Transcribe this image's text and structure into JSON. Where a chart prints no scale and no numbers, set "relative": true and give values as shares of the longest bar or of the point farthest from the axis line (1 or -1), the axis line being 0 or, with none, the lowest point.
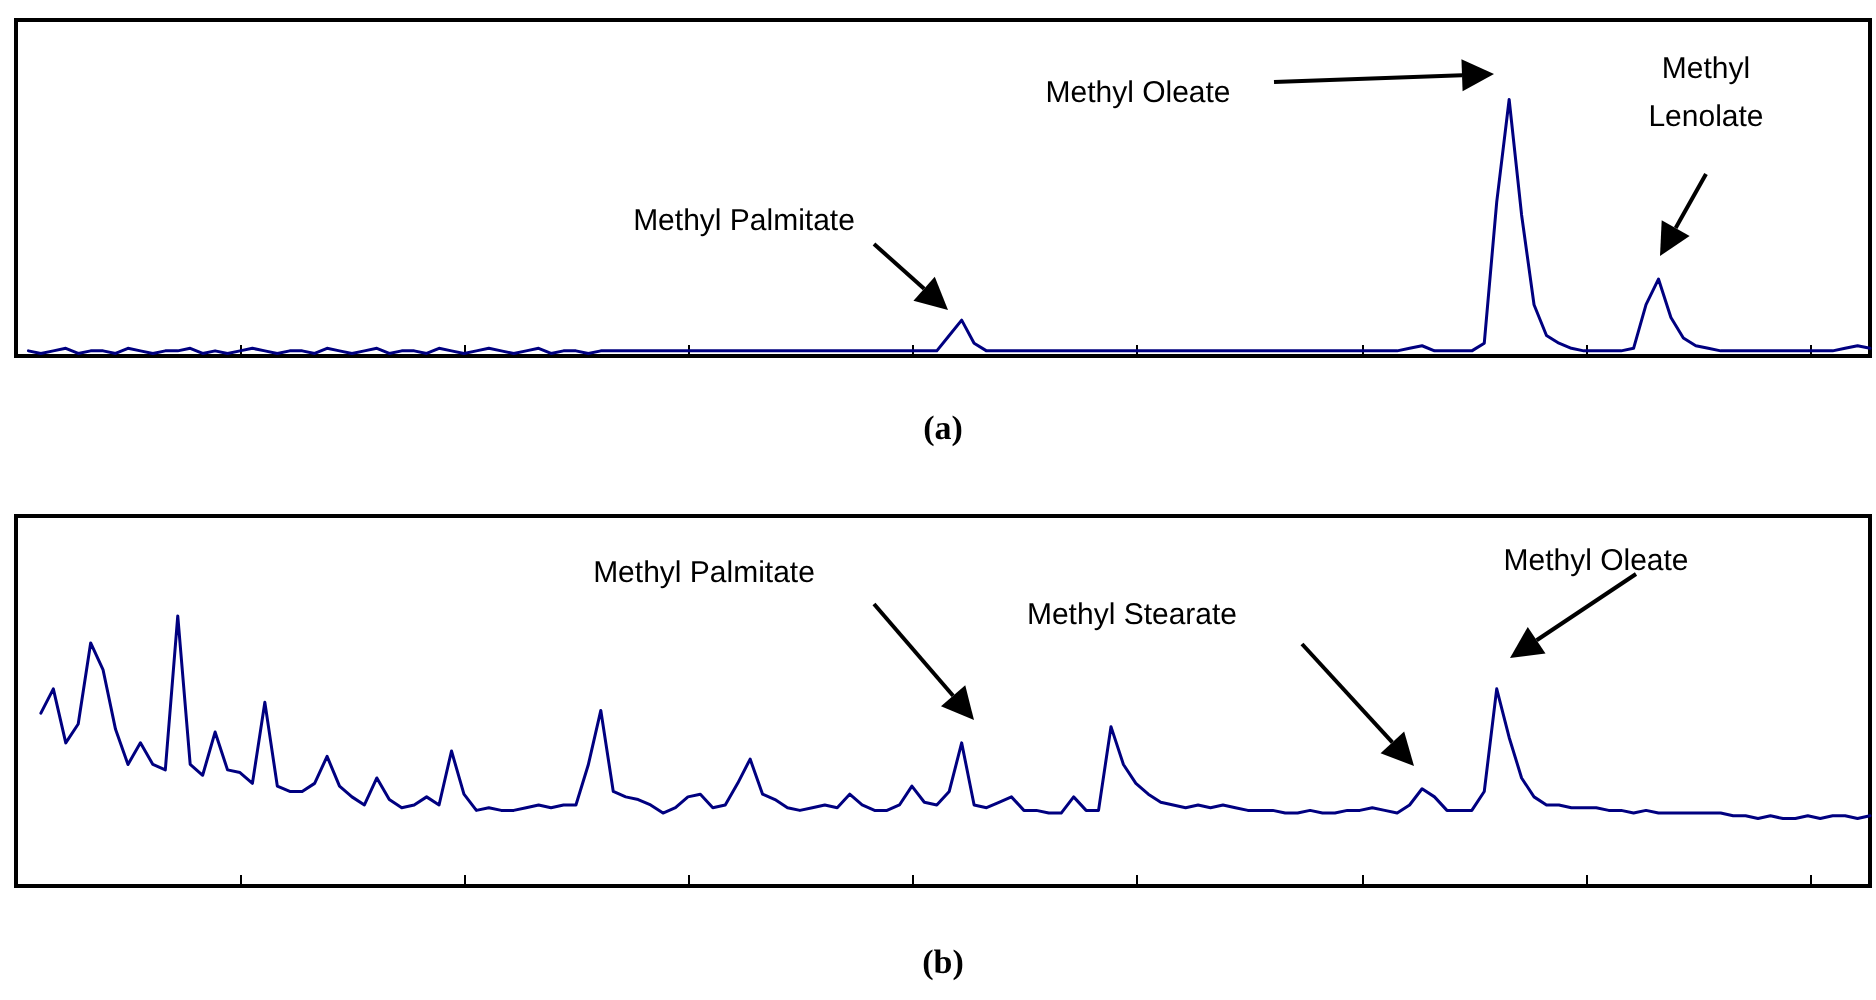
{
  "chart_data": [
    {
      "type": "line",
      "title": "(a)",
      "relative": true,
      "tick_labels": false,
      "grid": false,
      "color": "#000080",
      "categories": [
        null,
        null,
        null,
        null,
        null,
        null,
        null,
        null,
        null,
        null,
        null,
        null,
        null,
        null,
        null,
        null,
        null,
        null,
        null,
        null,
        null,
        null,
        null,
        null,
        null,
        null,
        null,
        null,
        null,
        null,
        null,
        null,
        null,
        null,
        null,
        null,
        null,
        null,
        null,
        null,
        null,
        null,
        null,
        null,
        null,
        null,
        null,
        null,
        null,
        null,
        null,
        null,
        null,
        null,
        null,
        null,
        null,
        null,
        null,
        null,
        null,
        null,
        null,
        null,
        null,
        null,
        null,
        null,
        null,
        null,
        null,
        null,
        null,
        null,
        null,
        null,
        null,
        null,
        null,
        null,
        null,
        null,
        null,
        null,
        null,
        null,
        null,
        null,
        null,
        null,
        null,
        null,
        null,
        null,
        null,
        null,
        null,
        null,
        null,
        null,
        null,
        null,
        null,
        null,
        null,
        null,
        null,
        null,
        null,
        null,
        null,
        null,
        null,
        null,
        null,
        null,
        null,
        null,
        null,
        null,
        null,
        null,
        null,
        null,
        null,
        null,
        null,
        null,
        null,
        null,
        null,
        null,
        null,
        null,
        null,
        null,
        null,
        null,
        null,
        null,
        null,
        null,
        null,
        null,
        null,
        null,
        null,
        null,
        null,
        null
      ],
      "values": [
        null,
        0.02,
        0.01,
        0.02,
        0.03,
        0.01,
        0.02,
        0.02,
        0.01,
        0.03,
        0.02,
        0.01,
        0.02,
        0.02,
        0.03,
        0.01,
        0.02,
        0.01,
        0.02,
        0.03,
        0.02,
        0.01,
        0.02,
        0.02,
        0.01,
        0.03,
        0.02,
        0.01,
        0.02,
        0.03,
        0.01,
        0.02,
        0.02,
        0.01,
        0.03,
        0.02,
        0.01,
        0.02,
        0.03,
        0.02,
        0.01,
        0.02,
        0.03,
        0.01,
        0.02,
        0.02,
        0.01,
        0.02,
        0.02,
        0.02,
        0.02,
        0.02,
        0.02,
        0.02,
        0.02,
        0.02,
        0.02,
        0.02,
        0.02,
        0.02,
        0.02,
        0.02,
        0.02,
        0.02,
        0.02,
        0.02,
        0.02,
        0.02,
        0.02,
        0.02,
        0.02,
        0.02,
        0.02,
        0.02,
        0.02,
        0.08,
        0.14,
        0.05,
        0.02,
        0.02,
        0.02,
        0.02,
        0.02,
        0.02,
        0.02,
        0.02,
        0.02,
        0.02,
        0.02,
        0.02,
        0.02,
        0.02,
        0.02,
        0.02,
        0.02,
        0.02,
        0.02,
        0.02,
        0.02,
        0.02,
        0.02,
        0.02,
        0.02,
        0.02,
        0.02,
        0.02,
        0.02,
        0.02,
        0.02,
        0.02,
        0.02,
        0.02,
        0.03,
        0.04,
        0.02,
        0.02,
        0.02,
        0.02,
        0.05,
        0.6,
        1,
        0.55,
        0.2,
        0.08,
        0.05,
        0.03,
        0.02,
        0.02,
        0.02,
        0.02,
        0.03,
        0.2,
        0.3,
        0.15,
        0.07,
        0.04,
        0.03,
        0.02,
        0.02,
        0.02,
        0.02,
        0.02,
        0.02,
        0.02,
        0.02,
        0.02,
        0.02,
        0.03,
        0.04,
        0.03
      ],
      "annotations": [
        "Methyl Palmitate",
        "Methyl Oleate",
        "Methyl\nLenolate"
      ]
    },
    {
      "type": "line",
      "title": "(b)",
      "relative": true,
      "tick_labels": false,
      "grid": false,
      "color": "#000080",
      "categories": [
        null,
        null,
        null,
        null,
        null,
        null,
        null,
        null,
        null,
        null,
        null,
        null,
        null,
        null,
        null,
        null,
        null,
        null,
        null,
        null,
        null,
        null,
        null,
        null,
        null,
        null,
        null,
        null,
        null,
        null,
        null,
        null,
        null,
        null,
        null,
        null,
        null,
        null,
        null,
        null,
        null,
        null,
        null,
        null,
        null,
        null,
        null,
        null,
        null,
        null,
        null,
        null,
        null,
        null,
        null,
        null,
        null,
        null,
        null,
        null,
        null,
        null,
        null,
        null,
        null,
        null,
        null,
        null,
        null,
        null,
        null,
        null,
        null,
        null,
        null,
        null,
        null,
        null,
        null,
        null,
        null,
        null,
        null,
        null,
        null,
        null,
        null,
        null,
        null,
        null,
        null,
        null,
        null,
        null,
        null,
        null,
        null,
        null,
        null,
        null,
        null,
        null,
        null,
        null,
        null,
        null,
        null,
        null,
        null,
        null,
        null,
        null,
        null,
        null,
        null,
        null,
        null,
        null,
        null,
        null,
        null,
        null,
        null,
        null,
        null,
        null,
        null,
        null,
        null,
        null,
        null,
        null,
        null,
        null,
        null,
        null,
        null,
        null,
        null,
        null,
        null,
        null,
        null,
        null,
        null,
        null,
        null,
        null,
        null,
        null
      ],
      "values": [
        null,
        null,
        0.64,
        0.73,
        0.53,
        0.6,
        0.9,
        0.8,
        0.58,
        0.45,
        0.53,
        0.45,
        0.43,
        1,
        0.45,
        0.41,
        0.57,
        0.43,
        0.42,
        0.38,
        0.68,
        0.37,
        0.35,
        0.35,
        0.38,
        0.48,
        0.37,
        0.33,
        0.3,
        0.4,
        0.32,
        0.29,
        0.3,
        0.33,
        0.3,
        0.5,
        0.34,
        0.28,
        0.29,
        0.28,
        0.28,
        0.29,
        0.3,
        0.29,
        0.3,
        0.3,
        0.45,
        0.65,
        0.35,
        0.33,
        0.32,
        0.3,
        0.27,
        0.29,
        0.33,
        0.34,
        0.29,
        0.3,
        0.38,
        0.47,
        0.34,
        0.32,
        0.29,
        0.28,
        0.29,
        0.3,
        0.29,
        0.34,
        0.3,
        0.28,
        0.28,
        0.3,
        0.37,
        0.31,
        0.3,
        0.35,
        0.53,
        0.3,
        0.29,
        0.31,
        0.33,
        0.28,
        0.28,
        0.27,
        0.27,
        0.33,
        0.28,
        0.28,
        0.59,
        0.45,
        0.38,
        0.34,
        0.31,
        0.3,
        0.29,
        0.3,
        0.29,
        0.3,
        0.29,
        0.28,
        0.28,
        0.28,
        0.27,
        0.27,
        0.28,
        0.27,
        0.27,
        0.28,
        0.28,
        0.29,
        0.28,
        0.27,
        0.3,
        0.36,
        0.33,
        0.28,
        0.28,
        0.28,
        0.35,
        0.73,
        0.55,
        0.4,
        0.33,
        0.3,
        0.3,
        0.29,
        0.29,
        0.29,
        0.28,
        0.28,
        0.27,
        0.28,
        0.27,
        0.27,
        0.27,
        0.27,
        0.27,
        0.27,
        0.26,
        0.26,
        0.25,
        0.26,
        0.25,
        0.25,
        0.26,
        0.25,
        0.26,
        0.26,
        0.25,
        0.26
      ],
      "annotations": [
        "Methyl Palmitate",
        "Methyl Stearate",
        "Methyl Oleate"
      ]
    }
  ]
}
